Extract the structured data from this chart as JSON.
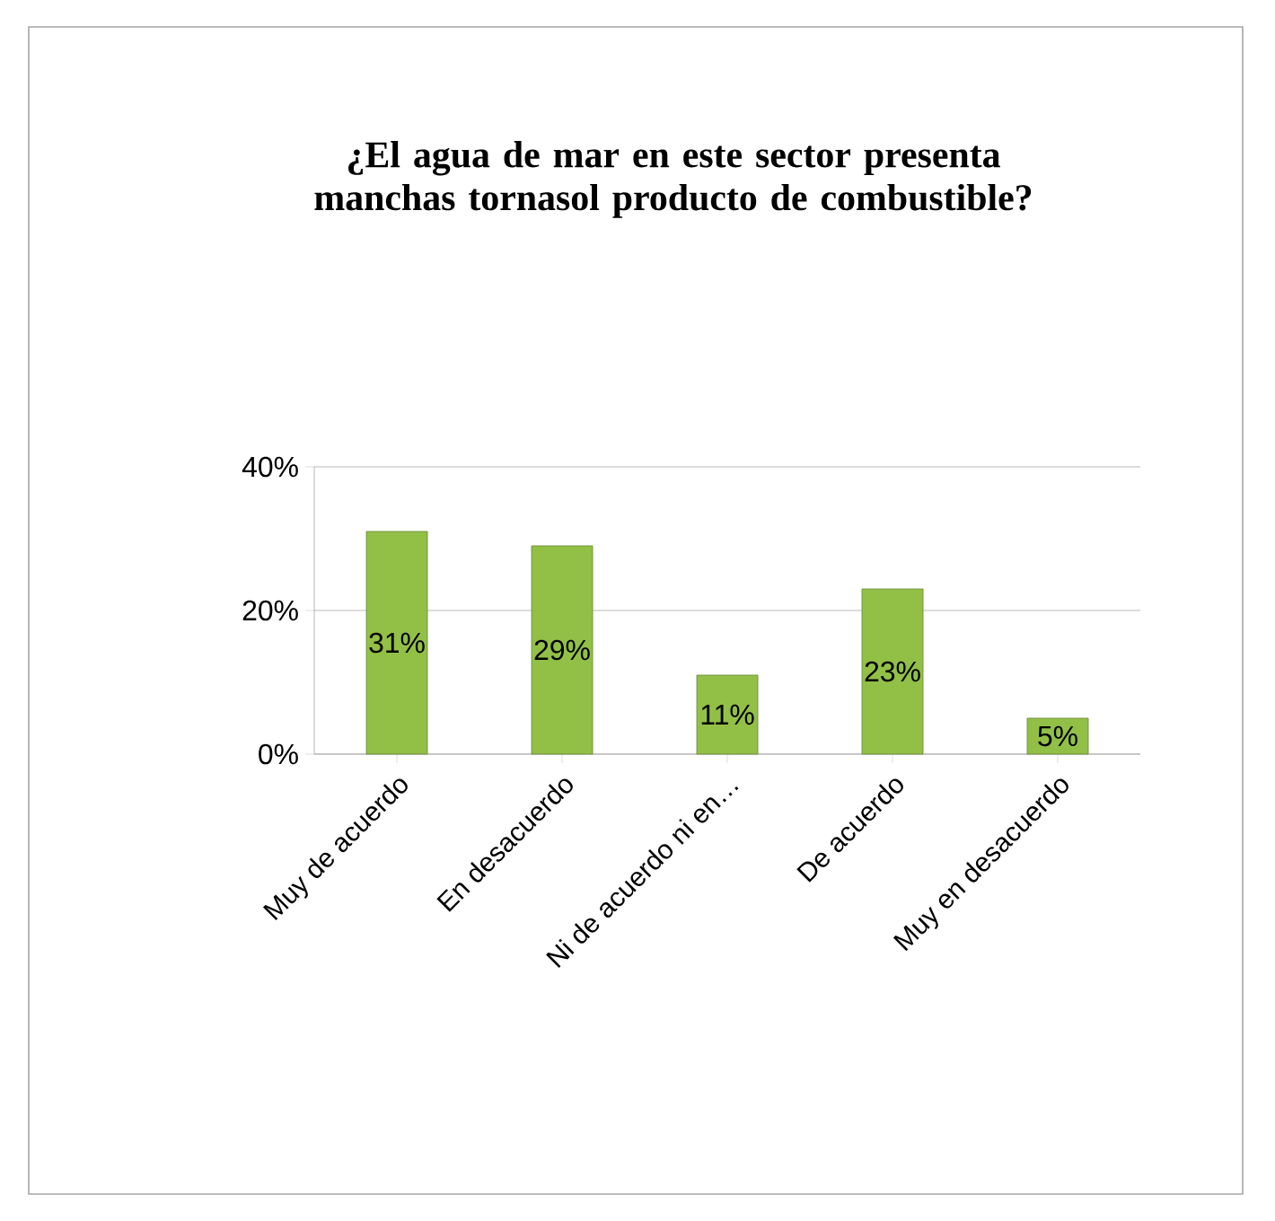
{
  "chart_data": {
    "type": "bar",
    "title": "¿El agua de mar en este sector presenta manchas tornasol producto de combustible?",
    "categories": [
      "Muy de acuerdo",
      "En desacuerdo",
      "Ni de acuerdo ni en…",
      "De acuerdo",
      "Muy en desacuerdo"
    ],
    "values": [
      31,
      29,
      11,
      23,
      5
    ],
    "value_labels": [
      "31%",
      "29%",
      "11%",
      "23%",
      "5%"
    ],
    "color": "#92c047",
    "ylim": [
      0,
      40
    ],
    "yticks": [
      {
        "value": 0,
        "label": "0%"
      },
      {
        "value": 20,
        "label": "20%"
      },
      {
        "value": 40,
        "label": "40%"
      }
    ],
    "grid": "y"
  }
}
